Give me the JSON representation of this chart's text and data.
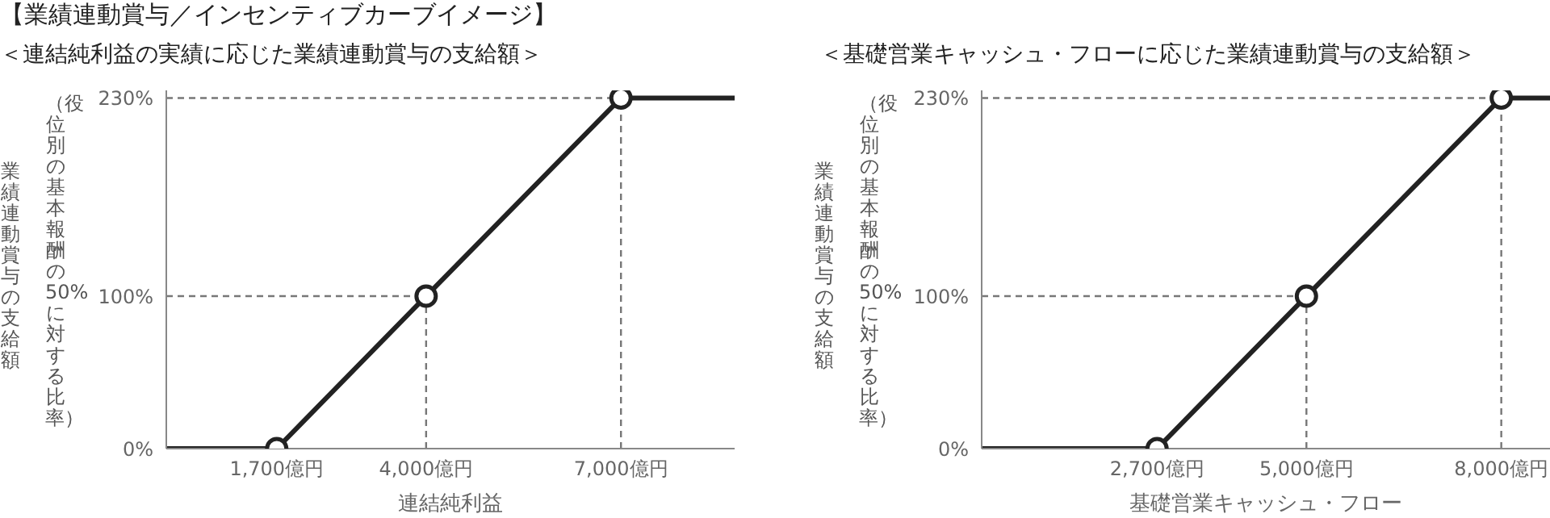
{
  "chart_data": [
    {
      "type": "line",
      "title": "【業績連動賞与／インセンティブカーブイメージ】",
      "subtitle": "＜連結純利益の実績に応じた業績連動賞与の支給額＞",
      "annotations": [
        "（役位別の基本報酬の50%に対する比率）"
      ],
      "xlabel": "連結純利益",
      "ylabel": "業績連動賞与の支給額",
      "xlim": [
        0,
        8750
      ],
      "xticks": [
        {
          "value": 1700,
          "label": "1,700億円"
        },
        {
          "value": 4000,
          "label": "4,000億円"
        },
        {
          "value": 7000,
          "label": "7,000億円"
        }
      ],
      "ylim": [
        0,
        235
      ],
      "yticks": [
        {
          "value": 0,
          "label": "0%"
        },
        {
          "value": 100,
          "label": "100%"
        },
        {
          "value": 230,
          "label": "230%"
        }
      ],
      "series": [
        {
          "type": "line",
          "color": "#222222",
          "marker": "none",
          "x": [
            0,
            1700,
            4000,
            7000,
            8750
          ],
          "values": [
            0,
            0,
            100,
            230,
            230
          ]
        },
        {
          "type": "scatter",
          "color": "#222222",
          "marker": "circle",
          "x": [
            1700,
            4000,
            7000
          ],
          "values": [
            0,
            100,
            230
          ]
        }
      ],
      "ref_lines": [
        {
          "axis": "x",
          "value": 4000,
          "color": "#777777",
          "line_style": "dashed"
        },
        {
          "axis": "x",
          "value": 7000,
          "color": "#777777",
          "line_style": "dashed"
        },
        {
          "axis": "y",
          "value": 100,
          "color": "#777777",
          "line_style": "dashed"
        },
        {
          "axis": "y",
          "value": 230,
          "color": "#777777",
          "line_style": "dashed"
        }
      ]
    },
    {
      "type": "line",
      "subtitle": "＜基礎営業キャッシュ・フローに応じた業績連動賞与の支給額＞",
      "annotations": [
        "（役位別の基本報酬の50%に対する比率）"
      ],
      "xlabel": "基礎営業キャッシュ・フロー",
      "ylabel": "業績連動賞与の支給額",
      "xlim": [
        0,
        8750
      ],
      "xticks": [
        {
          "value": 2700,
          "label": "2,700億円"
        },
        {
          "value": 5000,
          "label": "5,000億円"
        },
        {
          "value": 8000,
          "label": "8,000億円"
        }
      ],
      "ylim": [
        0,
        235
      ],
      "yticks": [
        {
          "value": 0,
          "label": "0%"
        },
        {
          "value": 100,
          "label": "100%"
        },
        {
          "value": 230,
          "label": "230%"
        }
      ],
      "series": [
        {
          "type": "line",
          "color": "#222222",
          "marker": "none",
          "x": [
            0,
            2700,
            5000,
            8000,
            8750
          ],
          "values": [
            0,
            0,
            100,
            230,
            230
          ]
        },
        {
          "type": "scatter",
          "color": "#222222",
          "marker": "circle",
          "x": [
            2700,
            5000,
            8000
          ],
          "values": [
            0,
            100,
            230
          ]
        }
      ],
      "ref_lines": [
        {
          "axis": "x",
          "value": 5000,
          "color": "#777777",
          "line_style": "dashed"
        },
        {
          "axis": "x",
          "value": 8000,
          "color": "#777777",
          "line_style": "dashed"
        },
        {
          "axis": "y",
          "value": 100,
          "color": "#777777",
          "line_style": "dashed"
        },
        {
          "axis": "y",
          "value": 230,
          "color": "#777777",
          "line_style": "dashed"
        }
      ]
    }
  ]
}
